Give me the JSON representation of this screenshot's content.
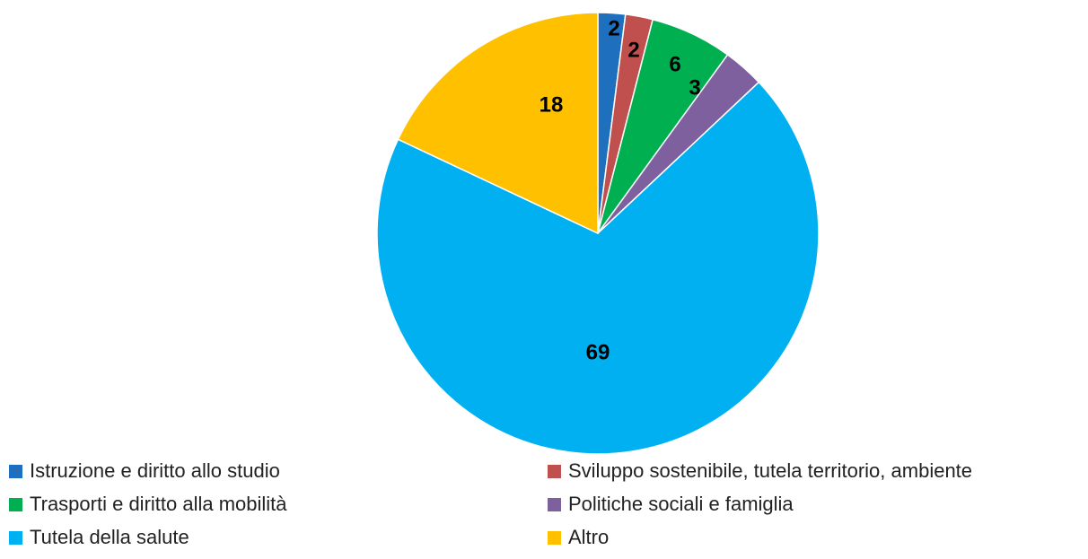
{
  "chart_data": {
    "type": "pie",
    "categories": [
      "Istruzione e diritto allo studio",
      "Sviluppo sostenibile, tutela territorio, ambiente",
      "Trasporti e diritto alla mobilità",
      "Politiche sociali e famiglia",
      "Tutela della salute",
      "Altro"
    ],
    "values": [
      2,
      2,
      6,
      3,
      69,
      18
    ],
    "colors": [
      "#1f6fbf",
      "#c0504d",
      "#00b050",
      "#7f609f",
      "#00b0f0",
      "#ffc000"
    ],
    "legend_position": "bottom",
    "title": ""
  }
}
